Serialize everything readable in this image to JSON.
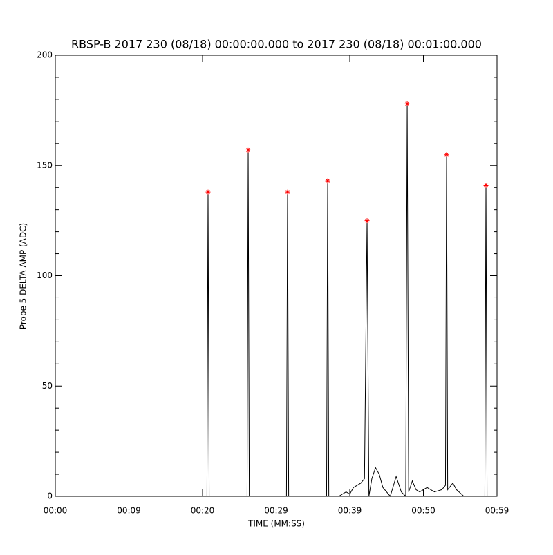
{
  "chart_data": {
    "type": "line",
    "title": "RBSP-B 2017 230 (08/18) 00:00:00.000 to 2017 230 (08/18) 00:01:00.000",
    "x_label": "TIME (MM:SS)",
    "y_label": "Probe 5 DELTA AMP (ADC)",
    "xlim": [
      0,
      60
    ],
    "ylim": [
      0,
      200
    ],
    "xticks": [
      {
        "value": 0,
        "label": "00:00"
      },
      {
        "value": 10,
        "label": "00:09"
      },
      {
        "value": 20,
        "label": "00:20"
      },
      {
        "value": 30,
        "label": "00:29"
      },
      {
        "value": 40,
        "label": "00:39"
      },
      {
        "value": 50,
        "label": "00:50"
      },
      {
        "value": 60,
        "label": "00:59"
      }
    ],
    "yticks": [
      0,
      50,
      100,
      150,
      200
    ],
    "yminorticks": [
      10,
      20,
      30,
      40,
      60,
      70,
      80,
      90,
      110,
      120,
      130,
      140,
      160,
      170,
      180,
      190
    ],
    "line": {
      "color": "#000000",
      "x": [
        0,
        20.6,
        20.75,
        20.9,
        26.05,
        26.2,
        26.35,
        31.4,
        31.55,
        31.7,
        36.85,
        37.0,
        37.15,
        38.5,
        39.5,
        40,
        40.5,
        41,
        41.5,
        42.0,
        42.35,
        42.6,
        43,
        43.5,
        44,
        44.5,
        45.5,
        46.3,
        47,
        47.6,
        47.8,
        48.0,
        48.5,
        49,
        49.5,
        50.5,
        51,
        51.5,
        52.5,
        53.0,
        53.15,
        53.3,
        54,
        54.5,
        55.5,
        57,
        58.35,
        58.5,
        58.65,
        60
      ],
      "values": [
        0,
        0,
        138,
        0,
        0,
        157,
        0,
        0,
        138,
        0,
        0,
        143,
        0,
        0,
        2,
        1,
        4,
        5,
        6,
        8,
        125,
        0,
        8,
        13,
        10,
        4,
        0,
        9,
        2,
        0,
        178,
        2,
        7,
        3,
        2,
        4,
        3,
        2,
        3,
        5,
        155,
        3,
        6,
        3,
        0,
        0,
        0,
        141,
        0,
        0
      ]
    },
    "peaks": {
      "color": "#ff0000",
      "x": [
        20.75,
        26.2,
        31.55,
        37.0,
        42.35,
        47.8,
        53.15,
        58.5
      ],
      "values": [
        138,
        157,
        138,
        143,
        125,
        178,
        155,
        141
      ]
    }
  }
}
